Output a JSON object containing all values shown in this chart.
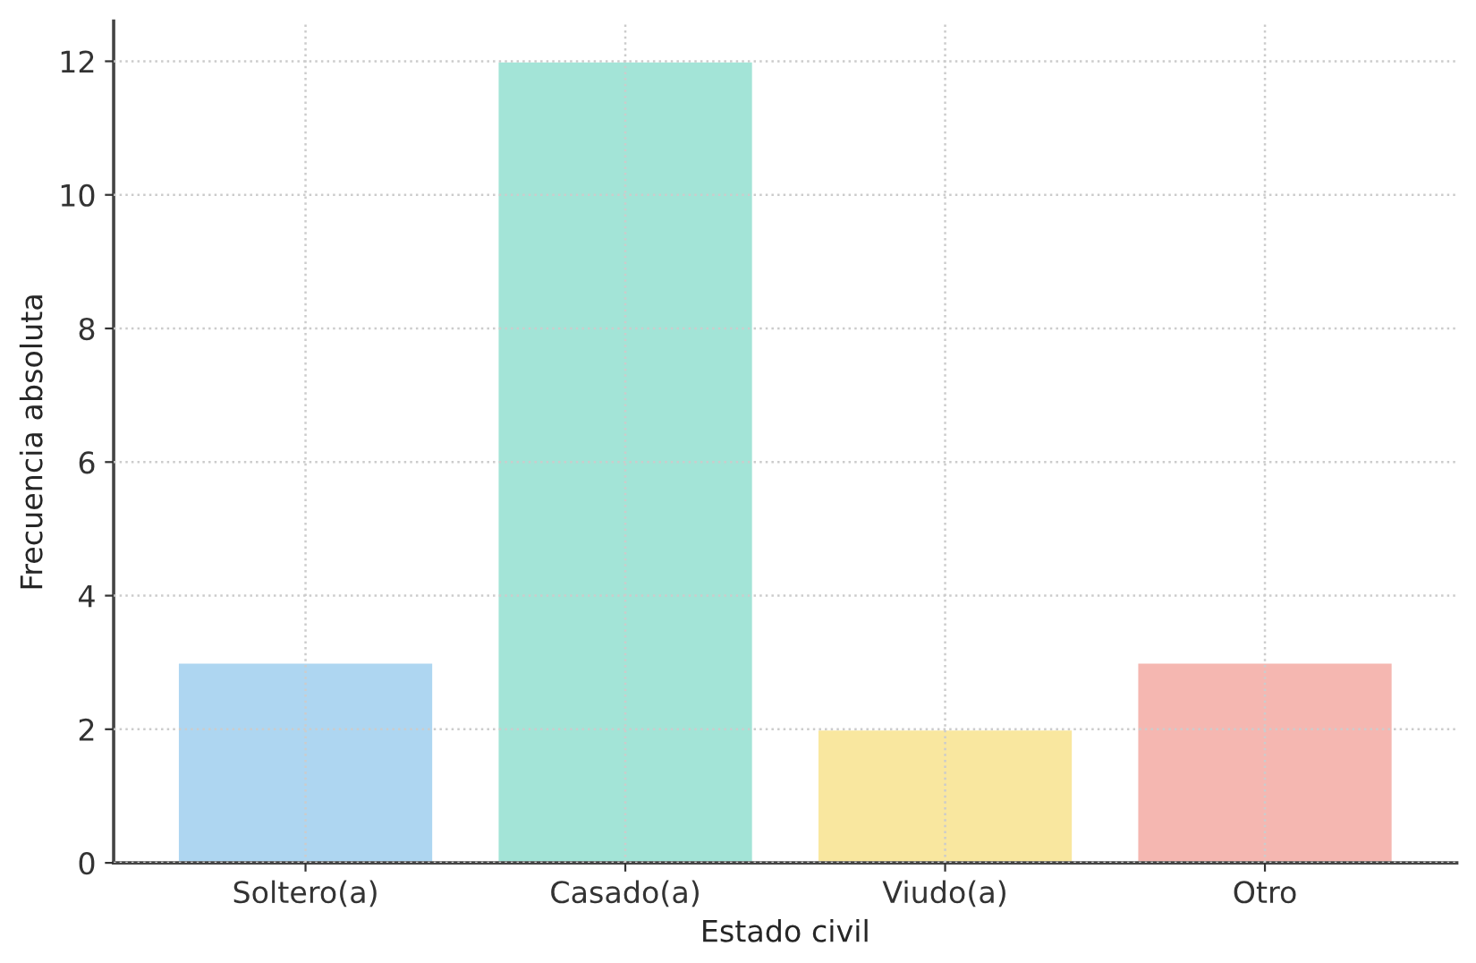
{
  "chart_data": {
    "type": "bar",
    "xlabel": "Estado civil",
    "ylabel": "Frecuencia absoluta",
    "categories": [
      "Soltero(a)",
      "Casado(a)",
      "Viudo(a)",
      "Otro"
    ],
    "values": [
      3,
      12,
      2,
      3
    ],
    "colors": [
      "#aed6f1",
      "#a3e4d7",
      "#f9e79f",
      "#f5b7b1"
    ],
    "ylim": [
      0,
      12.6
    ],
    "yticks": [
      0,
      2,
      4,
      6,
      8,
      10,
      12
    ],
    "grid": true
  }
}
